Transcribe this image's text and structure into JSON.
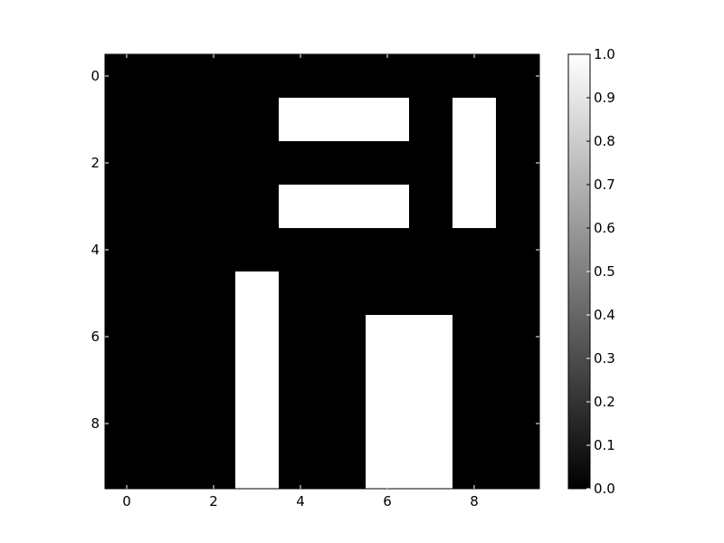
{
  "chart_data": {
    "type": "heatmap",
    "title": "",
    "xlabel": "",
    "ylabel": "",
    "colormap": "gray",
    "colors": {
      "low": "#000000",
      "high": "#ffffff"
    },
    "x_ticks": [
      "0",
      "2",
      "4",
      "6",
      "8"
    ],
    "y_ticks": [
      "0",
      "2",
      "4",
      "6",
      "8"
    ],
    "x_tick_values": [
      0,
      2,
      4,
      6,
      8
    ],
    "y_tick_values": [
      0,
      2,
      4,
      6,
      8
    ],
    "colorbar": {
      "range": [
        0.0,
        1.0
      ],
      "ticks": [
        "0.0",
        "0.1",
        "0.2",
        "0.3",
        "0.4",
        "0.5",
        "0.6",
        "0.7",
        "0.8",
        "0.9",
        "1.0"
      ],
      "tick_values": [
        0.0,
        0.1,
        0.2,
        0.3,
        0.4,
        0.5,
        0.6,
        0.7,
        0.8,
        0.9,
        1.0
      ]
    },
    "values": [
      [
        0,
        0,
        0,
        0,
        0,
        0,
        0,
        0,
        0,
        0
      ],
      [
        0,
        0,
        0,
        0,
        1,
        1,
        1,
        0,
        1,
        0
      ],
      [
        0,
        0,
        0,
        0,
        0,
        0,
        0,
        0,
        1,
        0
      ],
      [
        0,
        0,
        0,
        0,
        1,
        1,
        1,
        0,
        1,
        0
      ],
      [
        0,
        0,
        0,
        0,
        0,
        0,
        0,
        0,
        0,
        0
      ],
      [
        0,
        0,
        0,
        1,
        0,
        0,
        0,
        0,
        0,
        0
      ],
      [
        0,
        0,
        0,
        1,
        0,
        0,
        1,
        1,
        0,
        0
      ],
      [
        0,
        0,
        0,
        1,
        0,
        0,
        1,
        1,
        0,
        0
      ],
      [
        0,
        0,
        0,
        1,
        0,
        0,
        1,
        1,
        0,
        0
      ],
      [
        0,
        0,
        0,
        1,
        0,
        0,
        1,
        1,
        0,
        0
      ]
    ]
  }
}
